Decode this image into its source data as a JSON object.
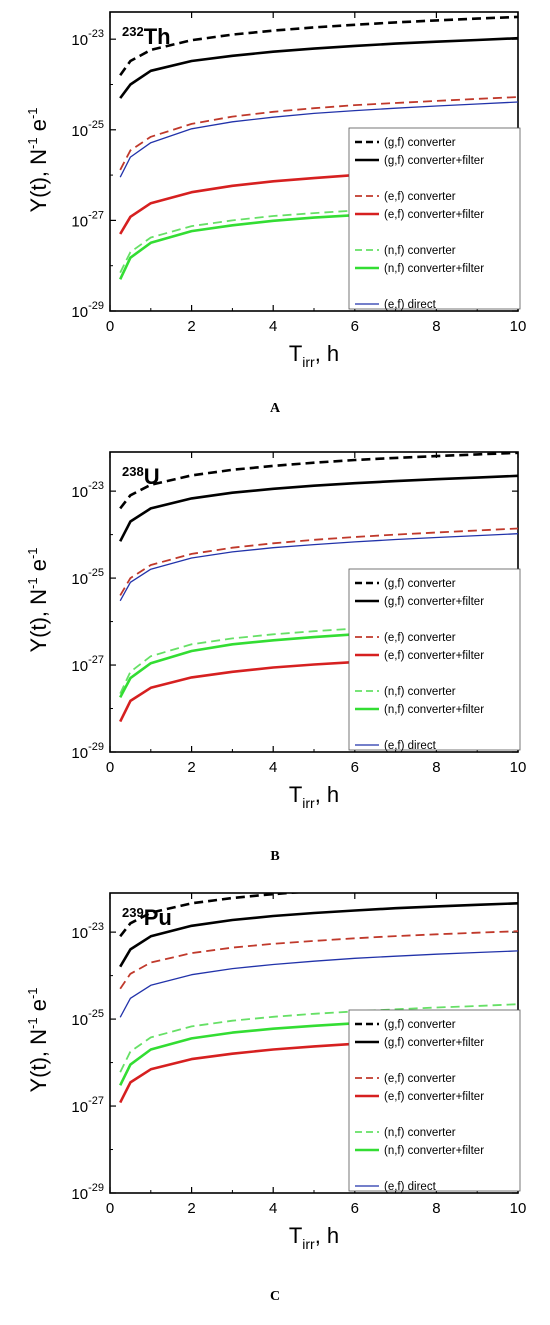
{
  "chart_data": [
    {
      "type": "line",
      "panel_label": "A",
      "nuclide": {
        "mass": "232",
        "symbol": "Th"
      },
      "xlabel": {
        "main": "T",
        "sub": "irr",
        "unit": ", h"
      },
      "ylabel": {
        "base": "Y(t), N",
        "exp1": "-1",
        "mid": " e",
        "exp2": "-1"
      },
      "xlim": [
        0,
        10
      ],
      "ylim_log10": [
        -29,
        -22.4
      ],
      "y_scale": "log",
      "x_ticks": [
        "0",
        "2",
        "4",
        "6",
        "8",
        "10"
      ],
      "y_ticks": [
        {
          "base": "10",
          "exp": "-29"
        },
        {
          "base": "10",
          "exp": "-27"
        },
        {
          "base": "10",
          "exp": "-25"
        },
        {
          "base": "10",
          "exp": "-23"
        }
      ],
      "legend_position": "lower-right",
      "x": [
        0.25,
        0.5,
        1,
        2,
        3,
        4,
        5,
        6,
        7,
        8,
        9,
        10
      ],
      "series": [
        {
          "name": "(g,f) converter",
          "color": "#000000",
          "dash": "dashed",
          "width": "thick",
          "values": [
            1.6e-24,
            3.3e-24,
            5.8e-24,
            9.5e-24,
            1.26e-23,
            1.55e-23,
            1.82e-23,
            2.08e-23,
            2.35e-23,
            2.6e-23,
            2.85e-23,
            3.1e-23
          ]
        },
        {
          "name": "(g,f) converter+filter",
          "color": "#000000",
          "dash": "solid",
          "width": "thick",
          "values": [
            5e-25,
            1e-24,
            2e-24,
            3.3e-24,
            4.3e-24,
            5.3e-24,
            6.2e-24,
            7.1e-24,
            8e-24,
            8.8e-24,
            9.6e-24,
            1.05e-23
          ]
        },
        {
          "name": "(e,f) converter",
          "color": "#c0392b",
          "dash": "dashed",
          "width": "medium",
          "values": [
            1.3e-26,
            3.5e-26,
            7e-26,
            1.35e-25,
            1.95e-25,
            2.5e-25,
            3e-25,
            3.5e-25,
            3.9e-25,
            4.35e-25,
            4.8e-25,
            5.3e-25
          ]
        },
        {
          "name": "(e,f) converter+filter",
          "color": "#d62020",
          "dash": "solid",
          "width": "thick",
          "values": [
            5e-28,
            1.2e-27,
            2.4e-27,
            4.2e-27,
            5.8e-27,
            7.3e-27,
            8.6e-27,
            1e-26,
            1.13e-26,
            1.25e-26,
            1.37e-26,
            1.5e-26
          ]
        },
        {
          "name": "(n,f) converter",
          "color": "#66e066",
          "dash": "dashed",
          "width": "medium",
          "values": [
            7e-29,
            2e-28,
            4.2e-28,
            7.5e-28,
            1e-27,
            1.25e-27,
            1.45e-27,
            1.65e-27,
            1.85e-27,
            2.05e-27,
            2.25e-27,
            2.45e-27
          ]
        },
        {
          "name": "(n,f) converter+filter",
          "color": "#33dd33",
          "dash": "solid",
          "width": "thick",
          "values": [
            5e-29,
            1.5e-28,
            3.2e-28,
            5.8e-28,
            7.8e-28,
            9.8e-28,
            1.15e-27,
            1.3e-27,
            1.45e-27,
            1.6e-27,
            1.75e-27,
            1.9e-27
          ]
        },
        {
          "name": "(e,f) direct",
          "color": "#2233aa",
          "dash": "solid",
          "width": "thin",
          "values": [
            9e-27,
            2.5e-26,
            5.2e-26,
            1.05e-25,
            1.5e-25,
            1.9e-25,
            2.3e-25,
            2.65e-25,
            3e-25,
            3.35e-25,
            3.7e-25,
            4.1e-25
          ]
        }
      ]
    },
    {
      "type": "line",
      "panel_label": "B",
      "nuclide": {
        "mass": "238",
        "symbol": "U"
      },
      "xlabel": {
        "main": "T",
        "sub": "irr",
        "unit": ", h"
      },
      "ylabel": {
        "base": "Y(t), N",
        "exp1": "-1",
        "mid": " e",
        "exp2": "-1"
      },
      "xlim": [
        0,
        10
      ],
      "ylim_log10": [
        -29,
        -22.1
      ],
      "y_scale": "log",
      "x_ticks": [
        "0",
        "2",
        "4",
        "6",
        "8",
        "10"
      ],
      "y_ticks": [
        {
          "base": "10",
          "exp": "-29"
        },
        {
          "base": "10",
          "exp": "-27"
        },
        {
          "base": "10",
          "exp": "-25"
        },
        {
          "base": "10",
          "exp": "-23"
        }
      ],
      "legend_position": "lower-right",
      "x": [
        0.25,
        0.5,
        1,
        2,
        3,
        4,
        5,
        6,
        7,
        8,
        9,
        10
      ],
      "series": [
        {
          "name": "(g,f) converter",
          "color": "#000000",
          "dash": "dashed",
          "width": "thick",
          "values": [
            4e-24,
            8e-24,
            1.4e-23,
            2.3e-23,
            3.1e-23,
            3.8e-23,
            4.5e-23,
            5.2e-23,
            5.8e-23,
            6.4e-23,
            7e-23,
            7.6e-23
          ]
        },
        {
          "name": "(g,f) converter+filter",
          "color": "#000000",
          "dash": "solid",
          "width": "thick",
          "values": [
            7e-25,
            2e-24,
            4e-24,
            6.8e-24,
            9.2e-24,
            1.13e-23,
            1.33e-23,
            1.52e-23,
            1.7e-23,
            1.88e-23,
            2.05e-23,
            2.25e-23
          ]
        },
        {
          "name": "(e,f) converter",
          "color": "#c0392b",
          "dash": "dashed",
          "width": "medium",
          "values": [
            4e-26,
            1e-25,
            2e-25,
            3.6e-25,
            5e-25,
            6.3e-25,
            7.6e-25,
            8.8e-25,
            1e-24,
            1.12e-24,
            1.24e-24,
            1.38e-24
          ]
        },
        {
          "name": "(e,f) converter+filter",
          "color": "#d62020",
          "dash": "solid",
          "width": "thick",
          "values": [
            5e-29,
            1.5e-28,
            3e-28,
            5.2e-28,
            7e-28,
            8.8e-28,
            1.03e-27,
            1.17e-27,
            1.3e-27,
            1.43e-27,
            1.56e-27,
            1.7e-27
          ]
        },
        {
          "name": "(n,f) converter",
          "color": "#66e066",
          "dash": "dashed",
          "width": "medium",
          "values": [
            2.2e-28,
            7e-28,
            1.6e-27,
            3e-27,
            4.1e-27,
            5.1e-27,
            6e-27,
            6.9e-27,
            7.7e-27,
            8.5e-27,
            9.3e-27,
            1e-26
          ]
        },
        {
          "name": "(n,f) converter+filter",
          "color": "#33dd33",
          "dash": "solid",
          "width": "thick",
          "values": [
            1.8e-28,
            5e-28,
            1.1e-27,
            2.1e-27,
            3e-27,
            3.7e-27,
            4.4e-27,
            5.1e-27,
            5.7e-27,
            6.3e-27,
            6.9e-27,
            7.5e-27
          ]
        },
        {
          "name": "(e,f) direct",
          "color": "#2233aa",
          "dash": "solid",
          "width": "thin",
          "values": [
            3e-26,
            8e-26,
            1.6e-25,
            2.9e-25,
            4e-25,
            5e-25,
            5.9e-25,
            6.8e-25,
            7.7e-25,
            8.6e-25,
            9.5e-25,
            1.05e-24
          ]
        }
      ]
    },
    {
      "type": "line",
      "panel_label": "C",
      "nuclide": {
        "mass": "239",
        "symbol": "Pu"
      },
      "xlabel": {
        "main": "T",
        "sub": "irr",
        "unit": ", h"
      },
      "ylabel": {
        "base": "Y(t), N",
        "exp1": "-1",
        "mid": " e",
        "exp2": "-1"
      },
      "xlim": [
        0,
        10
      ],
      "ylim_log10": [
        -29,
        -22.1
      ],
      "y_scale": "log",
      "x_ticks": [
        "0",
        "2",
        "4",
        "6",
        "8",
        "10"
      ],
      "y_ticks": [
        {
          "base": "10",
          "exp": "-29"
        },
        {
          "base": "10",
          "exp": "-27"
        },
        {
          "base": "10",
          "exp": "-25"
        },
        {
          "base": "10",
          "exp": "-23"
        }
      ],
      "legend_position": "lower-right",
      "x": [
        0.25,
        0.5,
        1,
        2,
        3,
        4,
        5,
        6,
        7,
        8,
        9,
        10
      ],
      "series": [
        {
          "name": "(g,f) converter",
          "color": "#000000",
          "dash": "dashed",
          "width": "thick",
          "values": [
            8e-24,
            1.6e-23,
            2.8e-23,
            4.6e-23,
            6.1e-23,
            7.5e-23,
            8.8e-23,
            1e-22,
            1.12e-22,
            1.24e-22,
            1.36e-22,
            1.48e-22
          ]
        },
        {
          "name": "(g,f) converter+filter",
          "color": "#000000",
          "dash": "solid",
          "width": "thick",
          "values": [
            1.6e-24,
            4e-24,
            8e-24,
            1.4e-23,
            1.9e-23,
            2.35e-23,
            2.75e-23,
            3.15e-23,
            3.55e-23,
            3.9e-23,
            4.25e-23,
            4.6e-23
          ]
        },
        {
          "name": "(e,f) converter",
          "color": "#c0392b",
          "dash": "dashed",
          "width": "medium",
          "values": [
            5e-25,
            1.1e-24,
            2e-24,
            3.3e-24,
            4.4e-24,
            5.4e-24,
            6.3e-24,
            7.2e-24,
            8.1e-24,
            8.9e-24,
            9.7e-24,
            1.05e-23
          ]
        },
        {
          "name": "(e,f) converter+filter",
          "color": "#d62020",
          "dash": "solid",
          "width": "thick",
          "values": [
            1.2e-27,
            3.5e-27,
            7e-27,
            1.2e-26,
            1.6e-26,
            2e-26,
            2.35e-26,
            2.7e-26,
            3e-26,
            3.3e-26,
            3.6e-26,
            3.9e-26
          ]
        },
        {
          "name": "(n,f) converter",
          "color": "#66e066",
          "dash": "dashed",
          "width": "medium",
          "values": [
            6e-27,
            1.8e-26,
            3.8e-26,
            6.8e-26,
            9.2e-26,
            1.13e-25,
            1.32e-25,
            1.5e-25,
            1.68e-25,
            1.85e-25,
            2e-25,
            2.2e-25
          ]
        },
        {
          "name": "(n,f) converter+filter",
          "color": "#33dd33",
          "dash": "solid",
          "width": "thick",
          "values": [
            3e-27,
            9e-27,
            2e-26,
            3.6e-26,
            4.9e-26,
            6e-26,
            7e-26,
            8e-26,
            8.9e-26,
            9.8e-26,
            1.07e-25,
            1.16e-25
          ]
        },
        {
          "name": "(e,f) direct",
          "color": "#2233aa",
          "dash": "solid",
          "width": "thin",
          "values": [
            1.1e-25,
            3e-25,
            6e-25,
            1.05e-24,
            1.45e-24,
            1.8e-24,
            2.15e-24,
            2.5e-24,
            2.8e-24,
            3.1e-24,
            3.4e-24,
            3.7e-24
          ]
        }
      ]
    }
  ]
}
